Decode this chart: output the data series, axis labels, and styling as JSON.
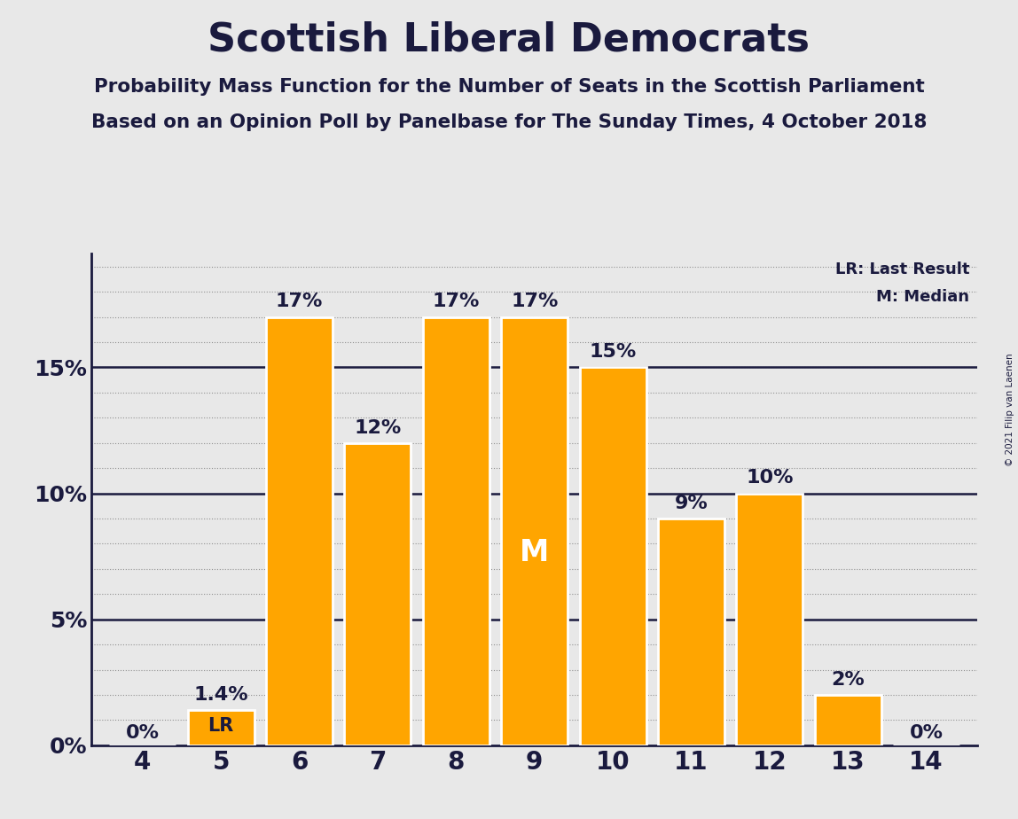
{
  "title": "Scottish Liberal Democrats",
  "subtitle1": "Probability Mass Function for the Number of Seats in the Scottish Parliament",
  "subtitle2": "Based on an Opinion Poll by Panelbase for The Sunday Times, 4 October 2018",
  "copyright": "© 2021 Filip van Laenen",
  "seats": [
    4,
    5,
    6,
    7,
    8,
    9,
    10,
    11,
    12,
    13,
    14
  ],
  "probabilities": [
    0.0,
    1.4,
    17.0,
    12.0,
    17.0,
    17.0,
    15.0,
    9.0,
    10.0,
    2.0,
    0.0
  ],
  "bar_color": "#FFA500",
  "bar_edge_color": "#FFFFFF",
  "background_color": "#E8E8E8",
  "text_color": "#1a1a3e",
  "yticks": [
    0,
    5,
    10,
    15
  ],
  "ytick_labels": [
    "0%",
    "5%",
    "10%",
    "15%"
  ],
  "ylim": [
    0,
    19.5
  ],
  "median_seat": 9,
  "lr_seat": 5,
  "lr_label": "LR",
  "median_label": "M",
  "legend_lr": "LR: Last Result",
  "legend_m": "M: Median",
  "bar_labels": [
    "0%",
    "1.4%",
    "17%",
    "12%",
    "17%",
    "17%",
    "15%",
    "9%",
    "10%",
    "2%",
    "0%"
  ]
}
